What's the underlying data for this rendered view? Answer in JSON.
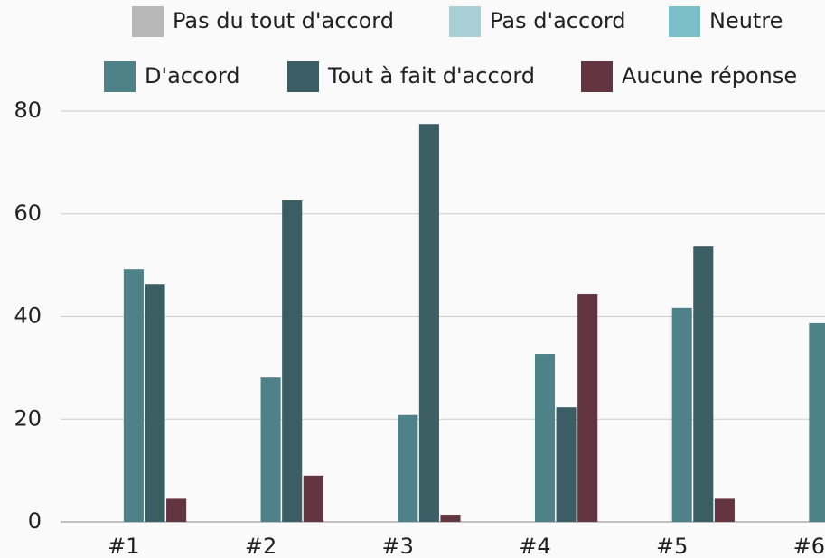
{
  "chart_data": {
    "type": "bar",
    "categories": [
      "#1",
      "#2",
      "#3",
      "#4",
      "#5",
      "#6"
    ],
    "series": [
      {
        "name": "Pas du tout d'accord",
        "color": "#b7b7b7",
        "values": [
          0,
          0,
          0,
          0,
          0,
          0
        ]
      },
      {
        "name": "Pas d'accord",
        "color": "#a9d0d7",
        "values": [
          0,
          0,
          0,
          0,
          0,
          0
        ]
      },
      {
        "name": "Neutre",
        "color": "#7cbdca",
        "values": [
          0,
          0,
          0,
          0,
          0,
          0
        ]
      },
      {
        "name": "D'accord",
        "color": "#4f8189",
        "values": [
          49.2,
          28.1,
          20.8,
          32.7,
          41.7,
          38.7
        ]
      },
      {
        "name": "Tout à fait d'accord",
        "color": "#3b5e65",
        "values": [
          46.2,
          62.6,
          77.5,
          22.3,
          53.6,
          null
        ]
      },
      {
        "name": "Aucune réponse",
        "color": "#633540",
        "values": [
          4.5,
          9.0,
          1.4,
          44.3,
          4.5,
          null
        ]
      }
    ],
    "ylim": [
      0,
      80
    ],
    "yticks": [
      0,
      20,
      40,
      60,
      80
    ],
    "grid": true
  }
}
